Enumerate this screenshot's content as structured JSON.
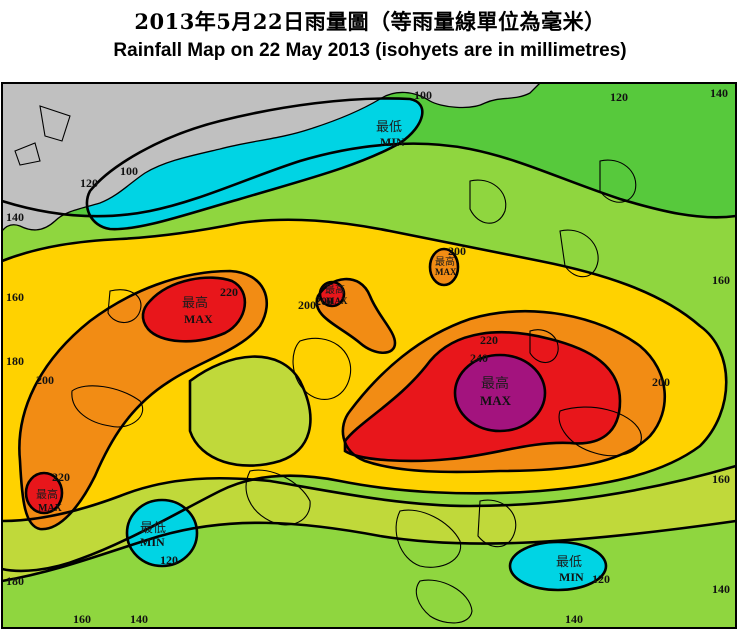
{
  "title": {
    "zh": "2013年5月22日雨量圖（等雨量線單位為毫米）",
    "en": "Rainfall Map on 22 May 2013 (isohyets are in millimetres)"
  },
  "map": {
    "max_zh": "最高",
    "max_en": "MAX",
    "min_zh": "最低",
    "min_en": "MIN",
    "isohyets": {
      "l100a": "100",
      "l100b": "100",
      "l120a": "120",
      "l120b": "120",
      "l140a": "140",
      "l140b": "140",
      "l160a": "160",
      "l160b": "160",
      "l180": "180",
      "l200a": "200",
      "l200b": "200",
      "l200c": "200",
      "l200d": "200",
      "l220a": "220",
      "l220b": "220",
      "l240": "240",
      "l220c": "220",
      "l200e": "200",
      "l160c": "160",
      "l120c": "120",
      "l140c": "140",
      "l180b": "180",
      "l140d": "140",
      "l160d": "160",
      "l120d": "120",
      "l140e": "140"
    },
    "colors": {
      "below_120": "#00d4e4",
      "120_140": "#57c93c",
      "140_160": "#8fd63f",
      "160_180": "#c0d93a",
      "180_200": "#ffd200",
      "200_220": "#f28c14",
      "220_240": "#e8161b",
      "above_240": "#a3137e",
      "land_outside": "#c0c0c0"
    }
  }
}
